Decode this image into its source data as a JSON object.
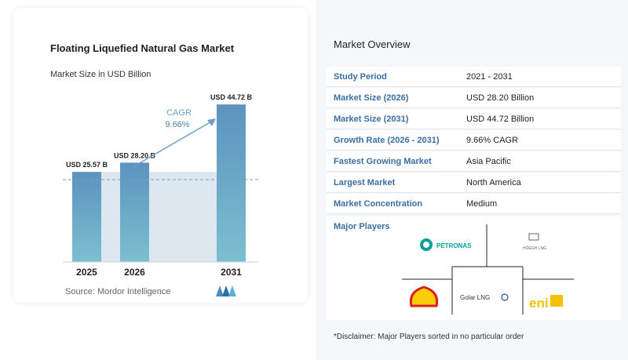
{
  "chart_data": {
    "type": "bar",
    "title": "Floating Liquefied Natural Gas Market",
    "subtitle": "Market Size in USD Billion",
    "categories": [
      "2025",
      "2026",
      "2031"
    ],
    "values": [
      25.57,
      28.2,
      44.72
    ],
    "value_labels": [
      "USD 25.57 B",
      "USD 28.20 B",
      "USD 44.72 B"
    ],
    "cagr_label": "CAGR",
    "cagr_value": "9.66%",
    "ylim": [
      0,
      47
    ],
    "bar_color": "#5b93be",
    "bar_color_light": "#7cbfd0"
  },
  "source": "Source:  Mordor Intelligence",
  "overview": {
    "title": "Market Overview",
    "rows": [
      {
        "key": "Study Period",
        "value": "2021 - 2031"
      },
      {
        "key": "Market Size (2026)",
        "value": "USD 28.20 Billion"
      },
      {
        "key": "Market Size (2031)",
        "value": "USD 44.72 Billion"
      },
      {
        "key": "Growth Rate (2026 - 2031)",
        "value": "9.66% CAGR"
      },
      {
        "key": "Fastest Growing Market",
        "value": "Asia Pacific"
      },
      {
        "key": "Largest Market",
        "value": "North America"
      },
      {
        "key": "Market Concentration",
        "value": "Medium"
      }
    ]
  },
  "players": {
    "title": "Major Players",
    "logos": [
      "PETRONAS",
      "HÖEGH LNG",
      "Shell",
      "Golar LNG",
      "eni"
    ]
  },
  "disclaimer": "*Disclaimer: Major Players sorted in no particular order"
}
